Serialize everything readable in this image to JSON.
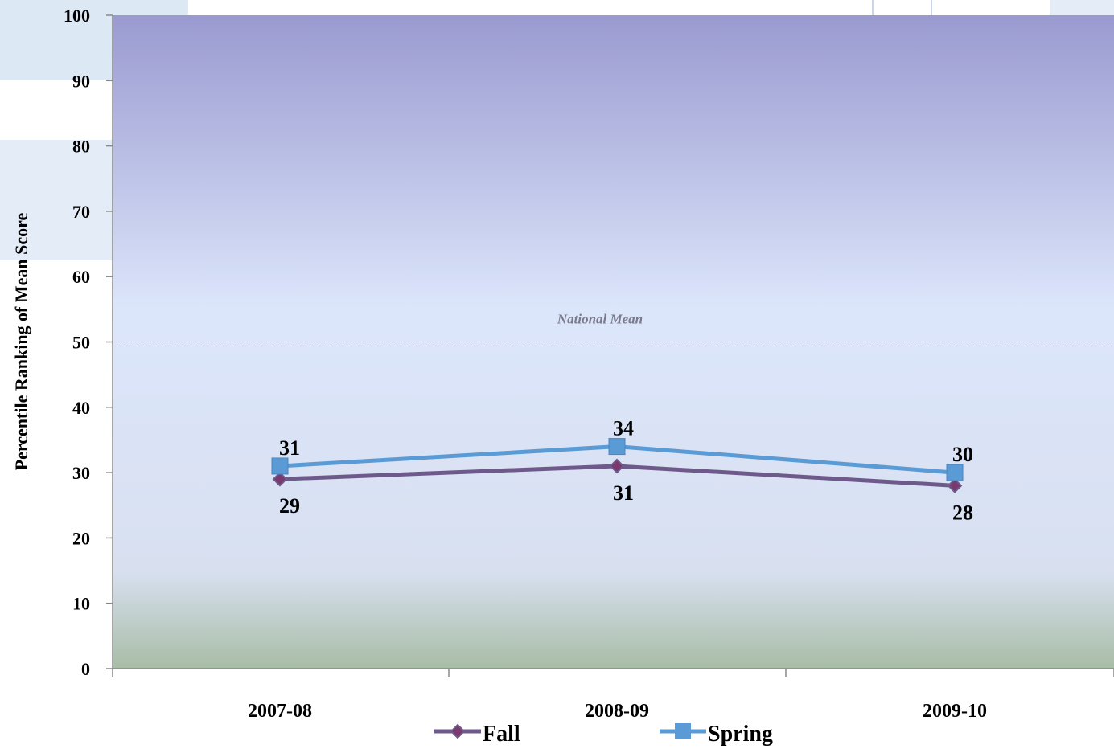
{
  "chart_data": {
    "type": "line",
    "title": "",
    "xlabel": "",
    "ylabel": "Percentile Ranking of  Mean Score",
    "ylim": [
      0,
      100
    ],
    "yticks": [
      0,
      10,
      20,
      30,
      40,
      50,
      60,
      70,
      80,
      90,
      100
    ],
    "categories": [
      "2007-08",
      "2008-09",
      "2009-10"
    ],
    "series": [
      {
        "name": "Fall",
        "values": [
          29,
          31,
          28
        ],
        "color": "#6e5a8a",
        "marker": "diamond",
        "label_position": "below"
      },
      {
        "name": "Spring",
        "values": [
          31,
          34,
          30
        ],
        "color": "#5b9bd5",
        "marker": "square",
        "label_position": "above"
      }
    ],
    "reference_line": {
      "label": "National Mean",
      "value": 50,
      "style": "dotted"
    },
    "legend": {
      "position": "bottom"
    },
    "background": {
      "top": "#9a9ad0",
      "middle": "#dce6fb",
      "bottom": "#a8bda6"
    },
    "grid": false
  }
}
